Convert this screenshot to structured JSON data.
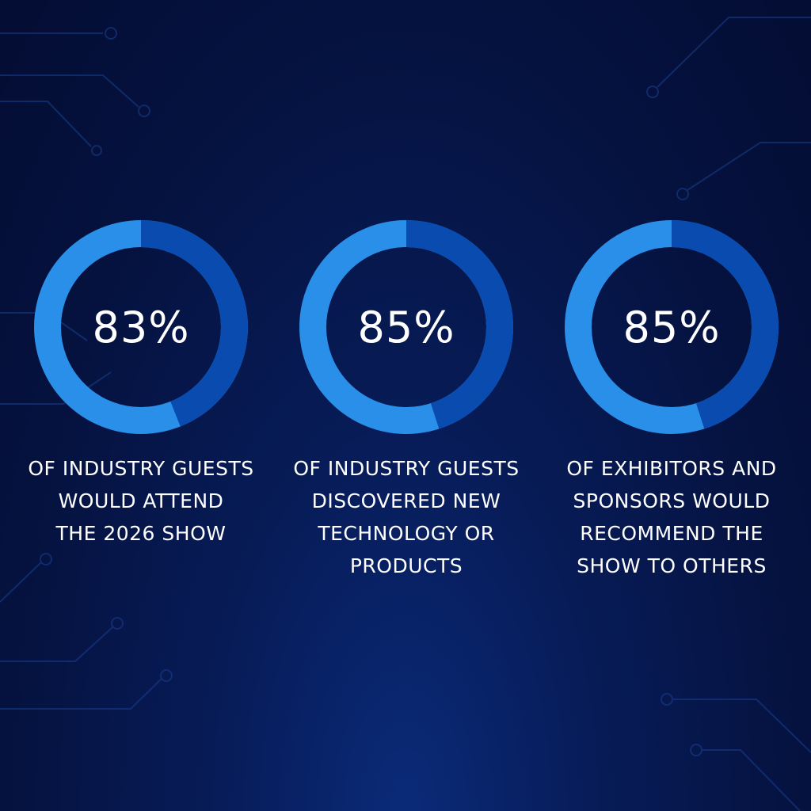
{
  "colors": {
    "ring_base": "#2a8fe8",
    "ring_fill": "#0a4bb0",
    "text": "#ffffff",
    "circuit": "#1a3f8f"
  },
  "chart_data": [
    {
      "type": "pie",
      "value_label": "83%",
      "value": 83,
      "caption_lines": [
        "OF INDUSTRY GUESTS",
        "WOULD ATTEND",
        "THE 2026 SHOW"
      ]
    },
    {
      "type": "pie",
      "value_label": "85%",
      "value": 85,
      "caption_lines": [
        "OF INDUSTRY GUESTS",
        "DISCOVERED NEW",
        "TECHNOLOGY OR",
        "PRODUCTS"
      ]
    },
    {
      "type": "pie",
      "value_label": "85%",
      "value": 85,
      "caption_lines": [
        "OF EXHIBITORS AND",
        "SPONSORS WOULD",
        "RECOMMEND THE",
        "SHOW TO OTHERS"
      ]
    }
  ]
}
